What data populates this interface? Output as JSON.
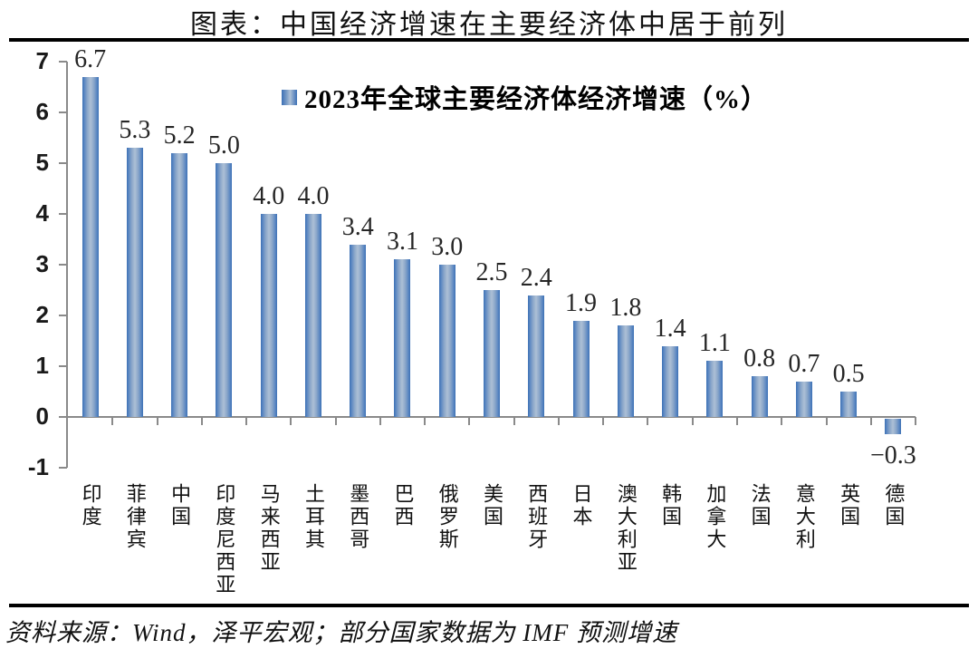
{
  "page": {
    "title": "图表：中国经济增速在主要经济体中居于前列",
    "footer": "资料来源：Wind，泽平宏观；部分国家数据为 IMF 预测增速"
  },
  "chart_data": {
    "type": "bar",
    "title": "图表：中国经济增速在主要经济体中居于前列",
    "legend": "2023年全球主要经济体经济增速（%）",
    "legend_position": "top-center-inside",
    "categories": [
      "印度",
      "菲律宾",
      "中国",
      "印度尼西亚",
      "马来西亚",
      "土耳其",
      "墨西哥",
      "巴西",
      "俄罗斯",
      "美国",
      "西班牙",
      "日本",
      "澳大利亚",
      "韩国",
      "加拿大",
      "法国",
      "意大利",
      "英国",
      "德国"
    ],
    "values": [
      6.7,
      5.3,
      5.2,
      5.0,
      4.0,
      4.0,
      3.4,
      3.1,
      3.0,
      2.5,
      2.4,
      1.9,
      1.8,
      1.4,
      1.1,
      0.8,
      0.7,
      0.5,
      -0.3
    ],
    "value_labels": [
      "6.7",
      "5.3",
      "5.2",
      "5.0",
      "4.0",
      "4.0",
      "3.4",
      "3.1",
      "3.0",
      "2.5",
      "2.4",
      "1.9",
      "1.8",
      "1.4",
      "1.1",
      "0.8",
      "0.7",
      "0.5",
      "−0.3"
    ],
    "xlabel": "",
    "ylabel": "",
    "ylim": [
      -1,
      7
    ],
    "yticks": [
      7,
      6,
      5,
      4,
      3,
      2,
      1,
      0,
      -1
    ],
    "ytick_labels": [
      "7",
      "6",
      "5",
      "4",
      "3",
      "2",
      "1",
      "0",
      "-1"
    ],
    "grid": false,
    "colors": {
      "bar_edge": "#3c70b5",
      "bar_center": "#adc0d6",
      "axis": "#8a8a8a",
      "text": "#111111"
    }
  }
}
